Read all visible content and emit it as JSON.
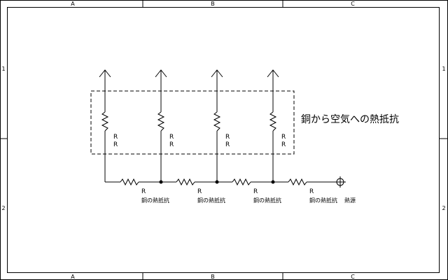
{
  "frame": {
    "zones_top": [
      "A",
      "B",
      "C"
    ],
    "zones_bottom": [
      "A",
      "B",
      "C"
    ],
    "zones_left": [
      "1",
      "2"
    ],
    "zones_right": [
      "1",
      "2"
    ]
  },
  "diagram": {
    "group_label": "銅から空気への熱抵抗",
    "vertical_resistors": [
      {
        "label_1": "R",
        "label_2": "R"
      },
      {
        "label_1": "R",
        "label_2": "R"
      },
      {
        "label_1": "R",
        "label_2": "R"
      },
      {
        "label_1": "R",
        "label_2": "R"
      }
    ],
    "horizontal_resistors": [
      {
        "label": "R",
        "caption": "銅の熱抵抗"
      },
      {
        "label": "R",
        "caption": "銅の熱抵抗"
      },
      {
        "label": "R",
        "caption": "銅の熱抵抗"
      },
      {
        "label": "R",
        "caption": "銅の熱抵抗"
      }
    ],
    "source_label": "熱源"
  }
}
